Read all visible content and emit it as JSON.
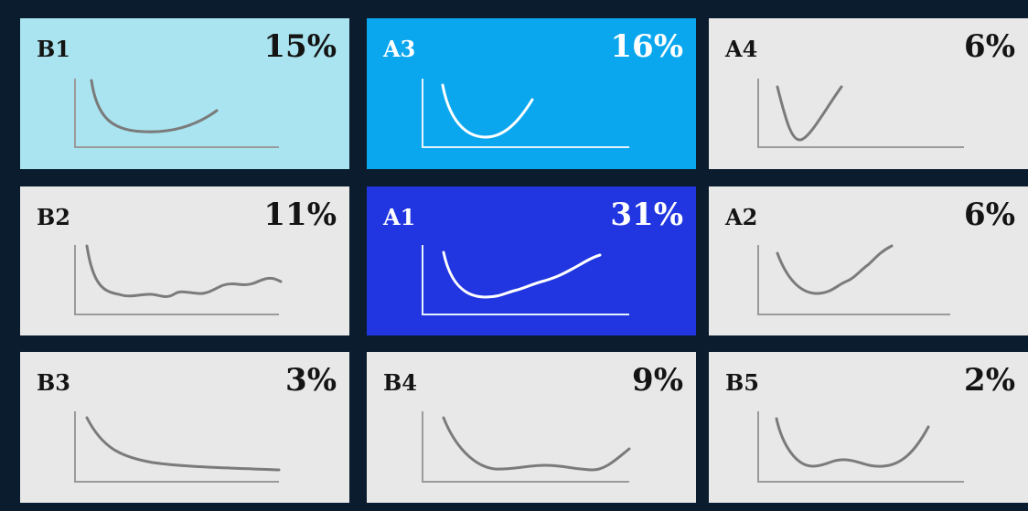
{
  "colors": {
    "background": "#0b1c2e",
    "light_cyan": "#a9e4f0",
    "sky_blue": "#0aa7ee",
    "royal_blue": "#2136e0",
    "light_gray": "#e8e8e8",
    "axis_dark": "#9a9a9a",
    "axis_light": "#e6f2ff",
    "curve_dark": "#7b7b7b",
    "curve_light": "#ffffff",
    "text_dark": "#141414",
    "text_light": "#ffffff"
  },
  "tiles": [
    {
      "label": "B1",
      "percent": "15%",
      "color": "#a9e4f0",
      "curve_shape": "flat-u"
    },
    {
      "label": "A3",
      "percent": "16%",
      "color": "#0aa7ee",
      "curve_shape": "u"
    },
    {
      "label": "A4",
      "percent": "6%",
      "color": "#e8e8e8",
      "curve_shape": "v"
    },
    {
      "label": "B2",
      "percent": "11%",
      "color": "#e8e8e8",
      "curve_shape": "drop-wavy"
    },
    {
      "label": "A1",
      "percent": "31%",
      "color": "#2136e0",
      "curve_shape": "u-rising"
    },
    {
      "label": "A2",
      "percent": "6%",
      "color": "#e8e8e8",
      "curve_shape": "u-rising"
    },
    {
      "label": "B3",
      "percent": "3%",
      "color": "#e8e8e8",
      "curve_shape": "decay"
    },
    {
      "label": "B4",
      "percent": "9%",
      "color": "#e8e8e8",
      "curve_shape": "flat-u"
    },
    {
      "label": "B5",
      "percent": "2%",
      "color": "#e8e8e8",
      "curve_shape": "w"
    }
  ]
}
